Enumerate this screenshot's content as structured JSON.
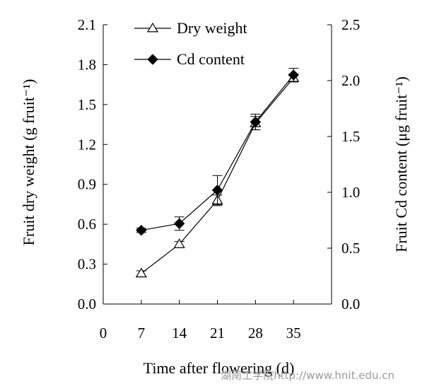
{
  "chart_data": {
    "type": "line",
    "x": [
      7,
      14,
      21,
      28,
      35
    ],
    "xlabel": "Time after flowering (d)",
    "xlim": [
      0,
      42
    ],
    "xticks": [
      0,
      7,
      14,
      21,
      28,
      35
    ],
    "ylabel_left": "Fruit dry weight (g fruit⁻¹)",
    "ylim_left": [
      0,
      2.1
    ],
    "yticks_left": [
      "0.0",
      "0.3",
      "0.6",
      "0.9",
      "1.2",
      "1.5",
      "1.8",
      "2.1"
    ],
    "ylabel_right": "Fruit Cd content (μg fruit⁻¹)",
    "ylim_right": [
      0,
      2.5
    ],
    "yticks_right": [
      "0.0",
      "0.5",
      "1.0",
      "1.5",
      "2.0",
      "2.5"
    ],
    "grid": false,
    "legend_placement": "top-center",
    "series": [
      {
        "name": "Dry weight",
        "axis": "left",
        "marker": "open-triangle",
        "values": [
          0.23,
          0.45,
          0.78,
          1.36,
          1.7
        ],
        "errors": [
          0.02,
          0.02,
          0.04,
          0.05,
          0.03
        ]
      },
      {
        "name": "Cd content",
        "axis": "right",
        "marker": "filled-diamond",
        "values": [
          0.66,
          0.72,
          1.02,
          1.63,
          2.05
        ],
        "errors": [
          0.02,
          0.06,
          0.13,
          0.07,
          0.06
        ]
      }
    ]
  },
  "watermark": "湖南工学院http://www.hnit.edu.cn",
  "colors": {
    "ink": "#000000",
    "watermark": "#9a9a9a"
  }
}
